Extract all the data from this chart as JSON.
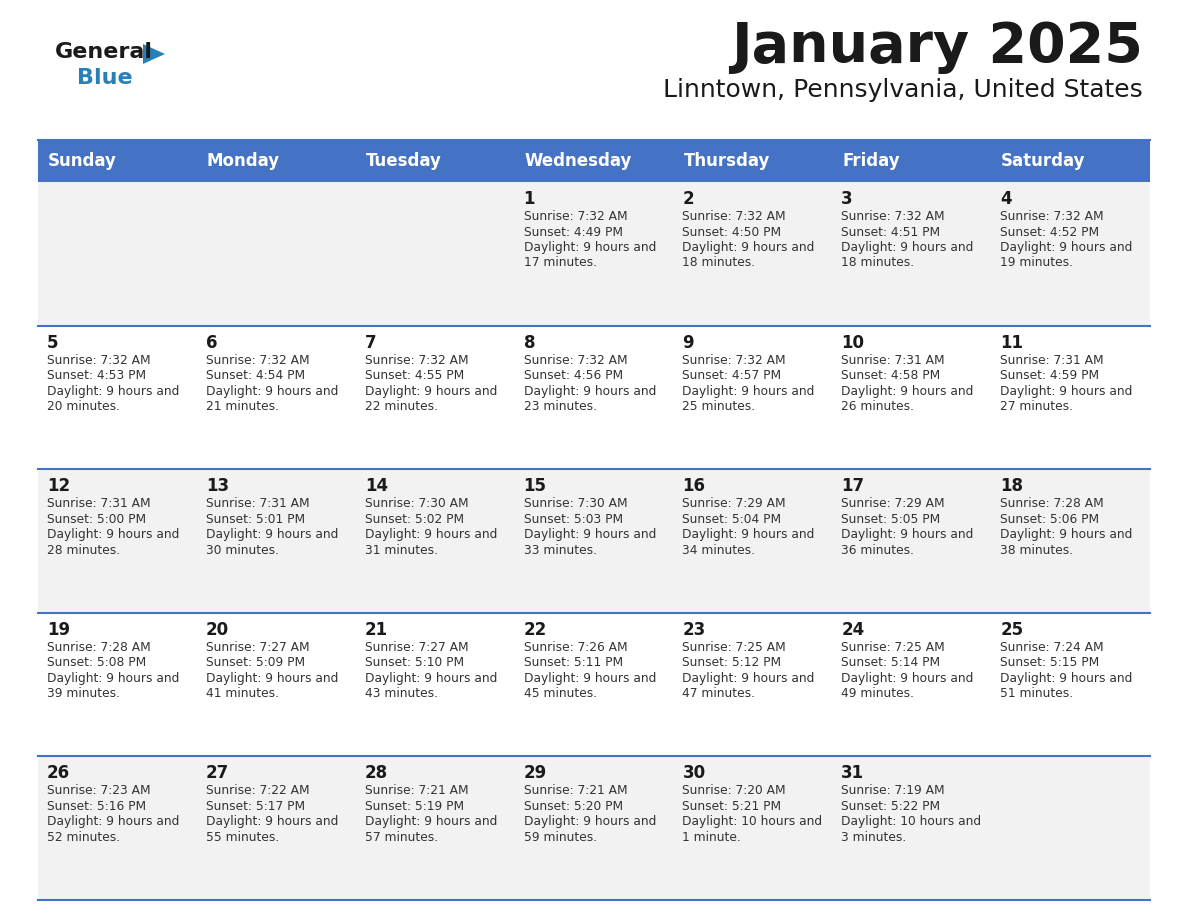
{
  "title": "January 2025",
  "subtitle": "Linntown, Pennsylvania, United States",
  "header_bg_color": "#4472C4",
  "header_text_color": "#FFFFFF",
  "header_days": [
    "Sunday",
    "Monday",
    "Tuesday",
    "Wednesday",
    "Thursday",
    "Friday",
    "Saturday"
  ],
  "row_bg_colors": [
    "#F2F2F2",
    "#FFFFFF",
    "#F2F2F2",
    "#FFFFFF",
    "#F2F2F2"
  ],
  "cell_text_color": "#333333",
  "day_number_color": "#1a1a1a",
  "divider_color": "#4472C4",
  "logo_general_color": "#1a1a1a",
  "logo_blue_color": "#2980B9",
  "logo_triangle_color": "#2980B9",
  "calendar_data": [
    [
      {
        "day": "",
        "sunrise": "",
        "sunset": "",
        "daylight": ""
      },
      {
        "day": "",
        "sunrise": "",
        "sunset": "",
        "daylight": ""
      },
      {
        "day": "",
        "sunrise": "",
        "sunset": "",
        "daylight": ""
      },
      {
        "day": "1",
        "sunrise": "7:32 AM",
        "sunset": "4:49 PM",
        "daylight": "9 hours and 17 minutes."
      },
      {
        "day": "2",
        "sunrise": "7:32 AM",
        "sunset": "4:50 PM",
        "daylight": "9 hours and 18 minutes."
      },
      {
        "day": "3",
        "sunrise": "7:32 AM",
        "sunset": "4:51 PM",
        "daylight": "9 hours and 18 minutes."
      },
      {
        "day": "4",
        "sunrise": "7:32 AM",
        "sunset": "4:52 PM",
        "daylight": "9 hours and 19 minutes."
      }
    ],
    [
      {
        "day": "5",
        "sunrise": "7:32 AM",
        "sunset": "4:53 PM",
        "daylight": "9 hours and 20 minutes."
      },
      {
        "day": "6",
        "sunrise": "7:32 AM",
        "sunset": "4:54 PM",
        "daylight": "9 hours and 21 minutes."
      },
      {
        "day": "7",
        "sunrise": "7:32 AM",
        "sunset": "4:55 PM",
        "daylight": "9 hours and 22 minutes."
      },
      {
        "day": "8",
        "sunrise": "7:32 AM",
        "sunset": "4:56 PM",
        "daylight": "9 hours and 23 minutes."
      },
      {
        "day": "9",
        "sunrise": "7:32 AM",
        "sunset": "4:57 PM",
        "daylight": "9 hours and 25 minutes."
      },
      {
        "day": "10",
        "sunrise": "7:31 AM",
        "sunset": "4:58 PM",
        "daylight": "9 hours and 26 minutes."
      },
      {
        "day": "11",
        "sunrise": "7:31 AM",
        "sunset": "4:59 PM",
        "daylight": "9 hours and 27 minutes."
      }
    ],
    [
      {
        "day": "12",
        "sunrise": "7:31 AM",
        "sunset": "5:00 PM",
        "daylight": "9 hours and 28 minutes."
      },
      {
        "day": "13",
        "sunrise": "7:31 AM",
        "sunset": "5:01 PM",
        "daylight": "9 hours and 30 minutes."
      },
      {
        "day": "14",
        "sunrise": "7:30 AM",
        "sunset": "5:02 PM",
        "daylight": "9 hours and 31 minutes."
      },
      {
        "day": "15",
        "sunrise": "7:30 AM",
        "sunset": "5:03 PM",
        "daylight": "9 hours and 33 minutes."
      },
      {
        "day": "16",
        "sunrise": "7:29 AM",
        "sunset": "5:04 PM",
        "daylight": "9 hours and 34 minutes."
      },
      {
        "day": "17",
        "sunrise": "7:29 AM",
        "sunset": "5:05 PM",
        "daylight": "9 hours and 36 minutes."
      },
      {
        "day": "18",
        "sunrise": "7:28 AM",
        "sunset": "5:06 PM",
        "daylight": "9 hours and 38 minutes."
      }
    ],
    [
      {
        "day": "19",
        "sunrise": "7:28 AM",
        "sunset": "5:08 PM",
        "daylight": "9 hours and 39 minutes."
      },
      {
        "day": "20",
        "sunrise": "7:27 AM",
        "sunset": "5:09 PM",
        "daylight": "9 hours and 41 minutes."
      },
      {
        "day": "21",
        "sunrise": "7:27 AM",
        "sunset": "5:10 PM",
        "daylight": "9 hours and 43 minutes."
      },
      {
        "day": "22",
        "sunrise": "7:26 AM",
        "sunset": "5:11 PM",
        "daylight": "9 hours and 45 minutes."
      },
      {
        "day": "23",
        "sunrise": "7:25 AM",
        "sunset": "5:12 PM",
        "daylight": "9 hours and 47 minutes."
      },
      {
        "day": "24",
        "sunrise": "7:25 AM",
        "sunset": "5:14 PM",
        "daylight": "9 hours and 49 minutes."
      },
      {
        "day": "25",
        "sunrise": "7:24 AM",
        "sunset": "5:15 PM",
        "daylight": "9 hours and 51 minutes."
      }
    ],
    [
      {
        "day": "26",
        "sunrise": "7:23 AM",
        "sunset": "5:16 PM",
        "daylight": "9 hours and 52 minutes."
      },
      {
        "day": "27",
        "sunrise": "7:22 AM",
        "sunset": "5:17 PM",
        "daylight": "9 hours and 55 minutes."
      },
      {
        "day": "28",
        "sunrise": "7:21 AM",
        "sunset": "5:19 PM",
        "daylight": "9 hours and 57 minutes."
      },
      {
        "day": "29",
        "sunrise": "7:21 AM",
        "sunset": "5:20 PM",
        "daylight": "9 hours and 59 minutes."
      },
      {
        "day": "30",
        "sunrise": "7:20 AM",
        "sunset": "5:21 PM",
        "daylight": "10 hours and 1 minute."
      },
      {
        "day": "31",
        "sunrise": "7:19 AM",
        "sunset": "5:22 PM",
        "daylight": "10 hours and 3 minutes."
      },
      {
        "day": "",
        "sunrise": "",
        "sunset": "",
        "daylight": ""
      }
    ]
  ]
}
